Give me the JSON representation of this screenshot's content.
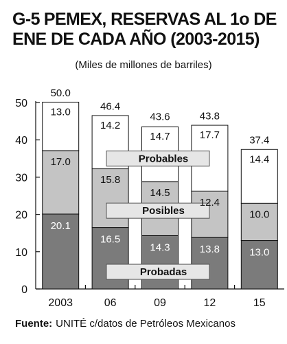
{
  "title": {
    "code": "G-5",
    "text": "PEMEX, RESERVAS AL 1o DE ENE DE CADA AÑO (2003-2015)"
  },
  "subtitle": "(Miles de millones de barriles)",
  "source": {
    "label": "Fuente:",
    "text": "UNITÉ c/datos de Petróleos Mexicanos"
  },
  "chart_data": {
    "type": "bar",
    "stacked": true,
    "categories": [
      "2003",
      "06",
      "09",
      "12",
      "15"
    ],
    "series": [
      {
        "name": "Probadas",
        "values": [
          20.1,
          16.5,
          14.3,
          13.8,
          13.0
        ],
        "labels": [
          "20.1",
          "16.5",
          "14.3",
          "13.8",
          "13.0"
        ],
        "color": "#7b7b7b",
        "label_color": "#ffffff"
      },
      {
        "name": "Posibles",
        "values": [
          17.0,
          15.8,
          14.5,
          12.4,
          10.0
        ],
        "labels": [
          "17.0",
          "15.8",
          "14.5",
          "12.4",
          "10.0"
        ],
        "color": "#c4c4c4",
        "label_color": "#111111"
      },
      {
        "name": "Probables",
        "values": [
          13.0,
          14.2,
          14.7,
          17.7,
          14.4
        ],
        "labels": [
          "13.0",
          "14.2",
          "14.7",
          "17.7",
          "14.4"
        ],
        "color": "#ffffff",
        "label_color": "#111111"
      }
    ],
    "totals": [
      50.0,
      46.4,
      43.6,
      43.8,
      37.4
    ],
    "total_labels": [
      "50.0",
      "46.4",
      "43.6",
      "43.8",
      "37.4"
    ],
    "ylim": [
      0,
      50
    ],
    "yticks": [
      "0",
      "10",
      "20",
      "30",
      "40",
      "50"
    ],
    "ytick_values": [
      0,
      10,
      20,
      30,
      40,
      50
    ],
    "legend_fill": "#e6e6e6"
  }
}
